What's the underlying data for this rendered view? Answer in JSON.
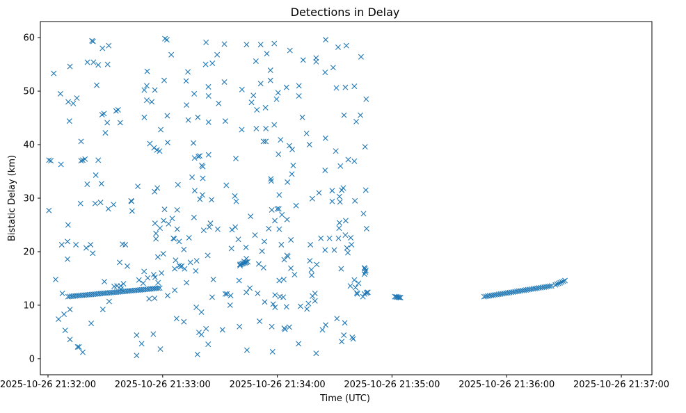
{
  "chart_data": {
    "type": "scatter",
    "title": "Detections in Delay",
    "xlabel": "Time (UTC)",
    "ylabel": "Bistatic Delay (km)",
    "marker": "x",
    "marker_color": "#1f77b4",
    "x_unit": "seconds after 2025-10-26 21:31:00",
    "xlim": [
      56,
      376
    ],
    "ylim": [
      -3,
      63
    ],
    "xticks": [
      {
        "value": 60,
        "label": "2025-10-26 21:32:00"
      },
      {
        "value": 120,
        "label": "2025-10-26 21:33:00"
      },
      {
        "value": 180,
        "label": "2025-10-26 21:34:00"
      },
      {
        "value": 240,
        "label": "2025-10-26 21:35:00"
      },
      {
        "value": 300,
        "label": "2025-10-26 21:36:00"
      },
      {
        "value": 360,
        "label": "2025-10-26 21:37:00"
      }
    ],
    "yticks": [
      {
        "value": 0,
        "label": "0"
      },
      {
        "value": 10,
        "label": "10"
      },
      {
        "value": 20,
        "label": "20"
      },
      {
        "value": 30,
        "label": "30"
      },
      {
        "value": 40,
        "label": "40"
      },
      {
        "value": 50,
        "label": "50"
      },
      {
        "value": 60,
        "label": "60"
      }
    ],
    "track_1": {
      "x_start": 70.5,
      "x_end": 118.5,
      "y_start": 11.6,
      "y_end": 13.2,
      "count": 52
    },
    "track_2": {
      "x_start": 288.2,
      "x_end": 323.5,
      "y_start": 11.6,
      "y_end": 13.6,
      "count": 38
    },
    "track_3": {
      "x_start": 325.5,
      "x_end": 330.5,
      "y_start": 13.8,
      "y_end": 14.6,
      "count": 7
    },
    "track_4": {
      "x_start": 160.5,
      "x_end": 164.5,
      "y_start": 17.6,
      "y_end": 18.1,
      "count": 7
    },
    "track_5": {
      "x_start": 241.5,
      "x_end": 244.5,
      "y_start": 11.6,
      "y_end": 11.4,
      "count": 6
    },
    "scatter_points": [
      [
        60.5,
        37.1
      ],
      [
        61.5,
        37.0
      ],
      [
        60.5,
        27.7
      ],
      [
        63,
        53.3
      ],
      [
        64,
        14.8
      ],
      [
        66.5,
        49.5
      ],
      [
        65.5,
        7.4
      ],
      [
        66.8,
        36.3
      ],
      [
        67.2,
        21.3
      ],
      [
        67.5,
        12.2
      ],
      [
        68.4,
        8.3
      ],
      [
        69,
        5.3
      ],
      [
        70.2,
        21.9
      ],
      [
        70.2,
        18.6
      ],
      [
        70.5,
        25.0
      ],
      [
        70.6,
        48.0
      ],
      [
        71.2,
        44.4
      ],
      [
        71.5,
        54.6
      ],
      [
        71.5,
        9.2
      ],
      [
        71.5,
        3.6
      ],
      [
        73.2,
        47.7
      ],
      [
        74.6,
        21.3
      ],
      [
        75.1,
        48.7
      ],
      [
        75.5,
        2.2
      ],
      [
        76.2,
        2.2
      ],
      [
        77,
        29.0
      ],
      [
        77.3,
        40.6
      ],
      [
        77.3,
        37.0
      ],
      [
        78.2,
        1.2
      ],
      [
        78.2,
        37.1
      ],
      [
        79.4,
        37.3
      ],
      [
        80,
        20.7
      ],
      [
        80.5,
        32.6
      ],
      [
        80.6,
        55.4
      ],
      [
        82.3,
        21.3
      ],
      [
        82.6,
        6.6
      ],
      [
        83,
        59.4
      ],
      [
        83.4,
        19.7
      ],
      [
        83.6,
        59.3
      ],
      [
        83.8,
        55.4
      ],
      [
        84.7,
        29.0
      ],
      [
        85,
        34.3
      ],
      [
        85.5,
        51.1
      ],
      [
        86.3,
        37.1
      ],
      [
        86.3,
        54.9
      ],
      [
        87.5,
        29.2
      ],
      [
        88,
        32.7
      ],
      [
        88.3,
        45.6
      ],
      [
        88.5,
        58.0
      ],
      [
        88.7,
        9.2
      ],
      [
        89.3,
        45.8
      ],
      [
        89.5,
        14.4
      ],
      [
        90,
        42.2
      ],
      [
        91,
        44.1
      ],
      [
        91.2,
        55.0
      ],
      [
        91.8,
        58.5
      ],
      [
        92,
        10.7
      ],
      [
        91.6,
        28.0
      ],
      [
        94.3,
        28.8
      ],
      [
        94.6,
        13.5
      ],
      [
        95.6,
        46.3
      ],
      [
        96.1,
        13.6
      ],
      [
        96.7,
        46.5
      ],
      [
        97.5,
        18.0
      ],
      [
        97.8,
        44.1
      ],
      [
        98,
        13.6
      ],
      [
        99,
        21.4
      ],
      [
        98.2,
        13.0
      ],
      [
        99.5,
        14.0
      ],
      [
        100.5,
        21.3
      ],
      [
        101.5,
        17.3
      ],
      [
        103.5,
        29.5
      ],
      [
        103.7,
        29.4
      ],
      [
        104,
        27.6
      ],
      [
        106.4,
        4.4
      ],
      [
        106.4,
        0.6
      ],
      [
        107,
        32.2
      ],
      [
        107.6,
        14.7
      ],
      [
        109,
        2.8
      ],
      [
        109.8,
        14.1
      ],
      [
        110.3,
        16.3
      ],
      [
        110.4,
        50.2
      ],
      [
        110.4,
        45.1
      ],
      [
        111.7,
        51.0
      ],
      [
        111.7,
        48.3
      ],
      [
        111.9,
        53.7
      ],
      [
        112.2,
        15.1
      ],
      [
        112.9,
        11.2
      ],
      [
        113.3,
        40.2
      ],
      [
        114.3,
        48.0
      ],
      [
        115.1,
        4.6
      ],
      [
        115.3,
        15.7
      ],
      [
        115.5,
        39.4
      ],
      [
        115.8,
        11.3
      ],
      [
        116,
        15.2
      ],
      [
        115.8,
        31.2
      ],
      [
        115.9,
        50.2
      ],
      [
        116,
        25.3
      ],
      [
        116.5,
        22.4
      ],
      [
        116.5,
        23.4
      ],
      [
        117,
        39.0
      ],
      [
        117.2,
        31.9
      ],
      [
        117.5,
        19.0
      ],
      [
        117.6,
        14.2
      ],
      [
        118.4,
        38.8
      ],
      [
        118.6,
        24.4
      ],
      [
        118.8,
        1.8
      ],
      [
        119,
        42.8
      ],
      [
        119.4,
        16.0
      ],
      [
        120.3,
        19.6
      ],
      [
        120.5,
        25.8
      ],
      [
        120.8,
        52.0
      ],
      [
        121,
        27.9
      ],
      [
        121.2,
        59.8
      ],
      [
        122.2,
        59.6
      ],
      [
        122.4,
        45.4
      ],
      [
        122.6,
        40.4
      ],
      [
        122.6,
        11.8
      ],
      [
        123.1,
        25.2
      ],
      [
        124.5,
        56.8
      ],
      [
        125,
        26.2
      ],
      [
        125.6,
        22.5
      ],
      [
        126,
        22.4
      ],
      [
        126.3,
        12.8
      ],
      [
        126.3,
        16.8
      ],
      [
        126.8,
        18.4
      ],
      [
        127.3,
        7.5
      ],
      [
        127.6,
        27.8
      ],
      [
        127.6,
        24.2
      ],
      [
        128,
        32.5
      ],
      [
        128.6,
        21.9
      ],
      [
        128.7,
        17.4
      ],
      [
        129.4,
        17.2
      ],
      [
        130,
        17.3
      ],
      [
        131.1,
        6.9
      ],
      [
        131.1,
        20.4
      ],
      [
        131.5,
        16.8
      ],
      [
        132.3,
        51.9
      ],
      [
        132.5,
        47.4
      ],
      [
        132.5,
        14.2
      ],
      [
        133.2,
        53.6
      ],
      [
        133.4,
        44.6
      ],
      [
        133.8,
        22.6
      ],
      [
        134.5,
        18.0
      ],
      [
        135.4,
        33.9
      ],
      [
        136.1,
        40.3
      ],
      [
        136.4,
        26.4
      ],
      [
        136.5,
        49.5
      ],
      [
        136.7,
        37.5
      ],
      [
        136.8,
        31.4
      ],
      [
        137.3,
        16.4
      ],
      [
        137.6,
        9.6
      ],
      [
        137.8,
        18.3
      ],
      [
        138.2,
        0.8
      ],
      [
        138.4,
        45.1
      ],
      [
        138.7,
        37.8
      ],
      [
        139,
        4.9
      ],
      [
        139.4,
        37.9
      ],
      [
        139.5,
        29.8
      ],
      [
        140.3,
        4.5
      ],
      [
        140.3,
        8.7
      ],
      [
        140.5,
        36.1
      ],
      [
        140.8,
        30.6
      ],
      [
        141,
        33.7
      ],
      [
        141,
        35.9
      ],
      [
        141.5,
        24.0
      ],
      [
        142.5,
        55.0
      ],
      [
        142.7,
        59.1
      ],
      [
        142.7,
        5.6
      ],
      [
        143.6,
        19.3
      ],
      [
        143.8,
        2.7
      ],
      [
        143.9,
        50.8
      ],
      [
        144,
        49.1
      ],
      [
        144,
        44.2
      ],
      [
        144,
        38.1
      ],
      [
        144.4,
        24.6
      ],
      [
        145,
        25.3
      ],
      [
        145.6,
        29.7
      ],
      [
        145.9,
        11.5
      ],
      [
        146,
        55.2
      ],
      [
        146.5,
        14.8
      ],
      [
        148.5,
        56.8
      ],
      [
        149.3,
        47.7
      ],
      [
        148.8,
        24.2
      ],
      [
        151.3,
        5.4
      ],
      [
        152.3,
        58.8
      ],
      [
        152.3,
        51.7
      ],
      [
        152.8,
        44.4
      ],
      [
        152.8,
        12.1
      ],
      [
        153.3,
        32.4
      ],
      [
        153.6,
        12.1
      ],
      [
        155.3,
        10.0
      ],
      [
        155.6,
        11.8
      ],
      [
        156,
        20.6
      ],
      [
        156.3,
        24.1
      ],
      [
        157.8,
        30.4
      ],
      [
        158,
        24.6
      ],
      [
        158.3,
        37.4
      ],
      [
        158.5,
        29.4
      ],
      [
        159.6,
        22.3
      ],
      [
        160,
        14.6
      ],
      [
        160.5,
        17.4
      ],
      [
        160.2,
        6.0
      ],
      [
        160.5,
        17.6
      ],
      [
        161.4,
        42.8
      ],
      [
        161.5,
        50.3
      ],
      [
        162.6,
        18.2
      ],
      [
        163.6,
        20.8
      ],
      [
        163.8,
        18.7
      ],
      [
        163.8,
        12.4
      ],
      [
        163.9,
        58.7
      ],
      [
        164.1,
        1.6
      ],
      [
        165.6,
        13.2
      ],
      [
        166,
        26.6
      ],
      [
        166.5,
        47.9
      ],
      [
        167.5,
        49.2
      ],
      [
        168.3,
        23.1
      ],
      [
        168.8,
        55.6
      ],
      [
        169,
        43.0
      ],
      [
        169.3,
        46.5
      ],
      [
        169.7,
        12.2
      ],
      [
        170.3,
        17.7
      ],
      [
        171.3,
        58.7
      ],
      [
        171.3,
        51.4
      ],
      [
        170.7,
        7.0
      ],
      [
        172,
        20.1
      ],
      [
        172.8,
        40.6
      ],
      [
        172.8,
        17.0
      ],
      [
        173.2,
        21.9
      ],
      [
        173.4,
        10.6
      ],
      [
        173.8,
        46.9
      ],
      [
        174,
        40.6
      ],
      [
        174,
        43.0
      ],
      [
        174.5,
        57.0
      ],
      [
        175.5,
        24.3
      ],
      [
        176.4,
        52.0
      ],
      [
        176.4,
        53.9
      ],
      [
        176.6,
        33.6
      ],
      [
        176.8,
        33.2
      ],
      [
        177.1,
        27.8
      ],
      [
        177.1,
        6.0
      ],
      [
        177.5,
        1.3
      ],
      [
        177.8,
        10.2
      ],
      [
        178.4,
        58.9
      ],
      [
        178.4,
        43.7
      ],
      [
        178.7,
        25.8
      ],
      [
        178.8,
        9.6
      ],
      [
        178.8,
        11.9
      ],
      [
        179.6,
        48.5
      ],
      [
        180,
        28.0
      ],
      [
        180.4,
        49.7
      ],
      [
        180.6,
        38.2
      ],
      [
        180.8,
        28.0
      ],
      [
        181,
        30.6
      ],
      [
        181,
        24.2
      ],
      [
        181,
        14.6
      ],
      [
        181.4,
        11.6
      ],
      [
        181.7,
        40.9
      ],
      [
        182.1,
        21.3
      ],
      [
        182.4,
        26.9
      ],
      [
        183.1,
        11.5
      ],
      [
        183.4,
        14.8
      ],
      [
        183.6,
        18.5
      ],
      [
        183.6,
        5.7
      ],
      [
        184,
        5.5
      ],
      [
        184.8,
        50.7
      ],
      [
        184.8,
        9.7
      ],
      [
        185.1,
        26.0
      ],
      [
        185.1,
        19.3
      ],
      [
        185.3,
        33.0
      ],
      [
        185.5,
        19.1
      ],
      [
        186.3,
        39.8
      ],
      [
        186.3,
        5.9
      ],
      [
        186.6,
        57.6
      ],
      [
        187.1,
        16.9
      ],
      [
        187.1,
        22.2
      ],
      [
        187.6,
        34.5
      ],
      [
        187.8,
        39.1
      ],
      [
        188.3,
        36.1
      ],
      [
        189,
        15.7
      ],
      [
        189.8,
        28.6
      ],
      [
        191.1,
        2.8
      ],
      [
        191.3,
        51.0
      ],
      [
        191.3,
        49.1
      ],
      [
        192.1,
        9.8
      ],
      [
        193.1,
        45.1
      ],
      [
        193.5,
        55.8
      ],
      [
        195.3,
        42.1
      ],
      [
        195.5,
        9.3
      ],
      [
        196.3,
        10.3
      ],
      [
        196.8,
        40.0
      ],
      [
        197,
        18.3
      ],
      [
        197.3,
        21.3
      ],
      [
        197.8,
        16.6
      ],
      [
        198,
        15.6
      ],
      [
        198.3,
        29.9
      ],
      [
        198.4,
        11.7
      ],
      [
        199.7,
        12.2
      ],
      [
        199.7,
        10.8
      ],
      [
        200.3,
        56.2
      ],
      [
        200.3,
        55.5
      ],
      [
        200.3,
        1.0
      ],
      [
        200.6,
        17.6
      ],
      [
        201.8,
        31.0
      ],
      [
        202.8,
        22.5
      ],
      [
        203.6,
        5.4
      ],
      [
        205,
        53.5
      ],
      [
        205,
        20.3
      ],
      [
        205,
        35.2
      ],
      [
        205.2,
        41.2
      ],
      [
        205.3,
        59.6
      ],
      [
        205.3,
        6.3
      ],
      [
        207.3,
        22.5
      ],
      [
        209.2,
        54.4
      ],
      [
        208.7,
        31.4
      ],
      [
        208.7,
        29.4
      ],
      [
        209.8,
        20.3
      ],
      [
        210.6,
        38.8
      ],
      [
        210.9,
        50.6
      ],
      [
        211.2,
        7.5
      ],
      [
        211.8,
        58.2
      ],
      [
        212,
        22.5
      ],
      [
        212.3,
        24.4
      ],
      [
        212.5,
        25.4
      ],
      [
        212.5,
        30.3
      ],
      [
        212.8,
        29.3
      ],
      [
        213,
        36.0
      ],
      [
        213.4,
        16.8
      ],
      [
        213.7,
        31.5
      ],
      [
        213.7,
        3.2
      ],
      [
        214.9,
        45.5
      ],
      [
        214.5,
        31.9
      ],
      [
        214.8,
        4.4
      ],
      [
        215.3,
        6.7
      ],
      [
        215.6,
        50.7
      ],
      [
        215.6,
        23.1
      ],
      [
        215.8,
        25.8
      ],
      [
        216.1,
        58.5
      ],
      [
        216.4,
        20.7
      ],
      [
        216.9,
        19.8
      ],
      [
        217.1,
        37.2
      ],
      [
        218.2,
        13.6
      ],
      [
        218.4,
        22.6
      ],
      [
        218.8,
        21.3
      ],
      [
        219.2,
        4.0
      ],
      [
        219.7,
        3.7
      ],
      [
        220.3,
        14.7
      ],
      [
        220.3,
        50.9
      ],
      [
        220.3,
        36.9
      ],
      [
        220.6,
        29.5
      ],
      [
        220.9,
        13.3
      ],
      [
        221.3,
        44.3
      ],
      [
        221.6,
        12.3
      ],
      [
        221.8,
        12.1
      ],
      [
        222.5,
        14.1
      ],
      [
        223.5,
        45.5
      ],
      [
        223.8,
        56.4
      ],
      [
        224.8,
        11.6
      ],
      [
        225.1,
        27.1
      ],
      [
        225.6,
        12.1
      ],
      [
        225.6,
        15.8
      ],
      [
        225.6,
        17.0
      ],
      [
        225.8,
        16.8
      ],
      [
        225.9,
        39.6
      ],
      [
        226.1,
        16.2
      ],
      [
        226.3,
        16.5
      ],
      [
        226.3,
        31.5
      ],
      [
        226.5,
        48.5
      ],
      [
        226.6,
        12.3
      ],
      [
        226.7,
        24.3
      ],
      [
        227.1,
        12.4
      ],
      [
        227.4,
        12.4
      ]
    ]
  }
}
